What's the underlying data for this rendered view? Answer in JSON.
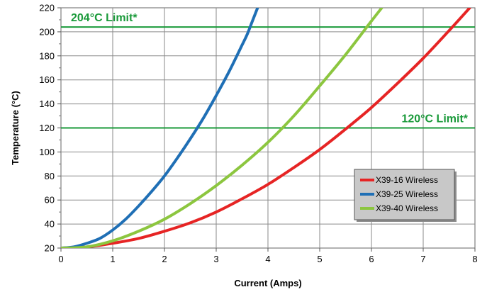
{
  "chart_data": {
    "type": "line",
    "title": "",
    "xlabel": "Current (Amps)",
    "ylabel": "Temperature (°C)",
    "xlim": [
      0,
      8
    ],
    "ylim": [
      20,
      220
    ],
    "x_ticks": [
      0,
      1,
      2,
      3,
      4,
      5,
      6,
      7,
      8
    ],
    "y_ticks": [
      20,
      40,
      60,
      80,
      100,
      120,
      140,
      160,
      180,
      200,
      220
    ],
    "grid": true,
    "minor_y_ticks": true,
    "legend_position": "bottom-right",
    "limits": [
      {
        "label": "204°C Limit*",
        "value": 204,
        "color": "#1a9a3a"
      },
      {
        "label": "120°C Limit*",
        "value": 120,
        "color": "#1a9a3a"
      }
    ],
    "series": [
      {
        "name": "X39-16 Wireless",
        "color": "#e62424",
        "x": [
          0,
          0.5,
          1,
          1.5,
          2,
          2.5,
          3,
          3.5,
          4,
          4.5,
          5,
          5.5,
          6,
          6.5,
          7,
          7.5,
          7.9
        ],
        "y": [
          20,
          21,
          24,
          28,
          34,
          41,
          50,
          61,
          73,
          87,
          102,
          119,
          137,
          157,
          178,
          201,
          220
        ]
      },
      {
        "name": "X39-25 Wireless",
        "color": "#1f6fb5",
        "x": [
          0,
          0.25,
          0.5,
          0.75,
          1,
          1.25,
          1.5,
          1.75,
          2,
          2.25,
          2.5,
          2.75,
          3,
          3.25,
          3.5,
          3.6,
          3.7,
          3.8
        ],
        "y": [
          20,
          21,
          24,
          28,
          35,
          44,
          55,
          67,
          80,
          95,
          111,
          128,
          147,
          167,
          189,
          198,
          209,
          220
        ]
      },
      {
        "name": "X39-40 Wireless",
        "color": "#8cc63f",
        "x": [
          0,
          0.5,
          1,
          1.5,
          2,
          2.5,
          3,
          3.5,
          4,
          4.5,
          5,
          5.5,
          6,
          6.2
        ],
        "y": [
          20,
          21,
          26,
          34,
          44,
          57,
          72,
          89,
          108,
          130,
          155,
          181,
          209,
          220
        ]
      }
    ]
  }
}
